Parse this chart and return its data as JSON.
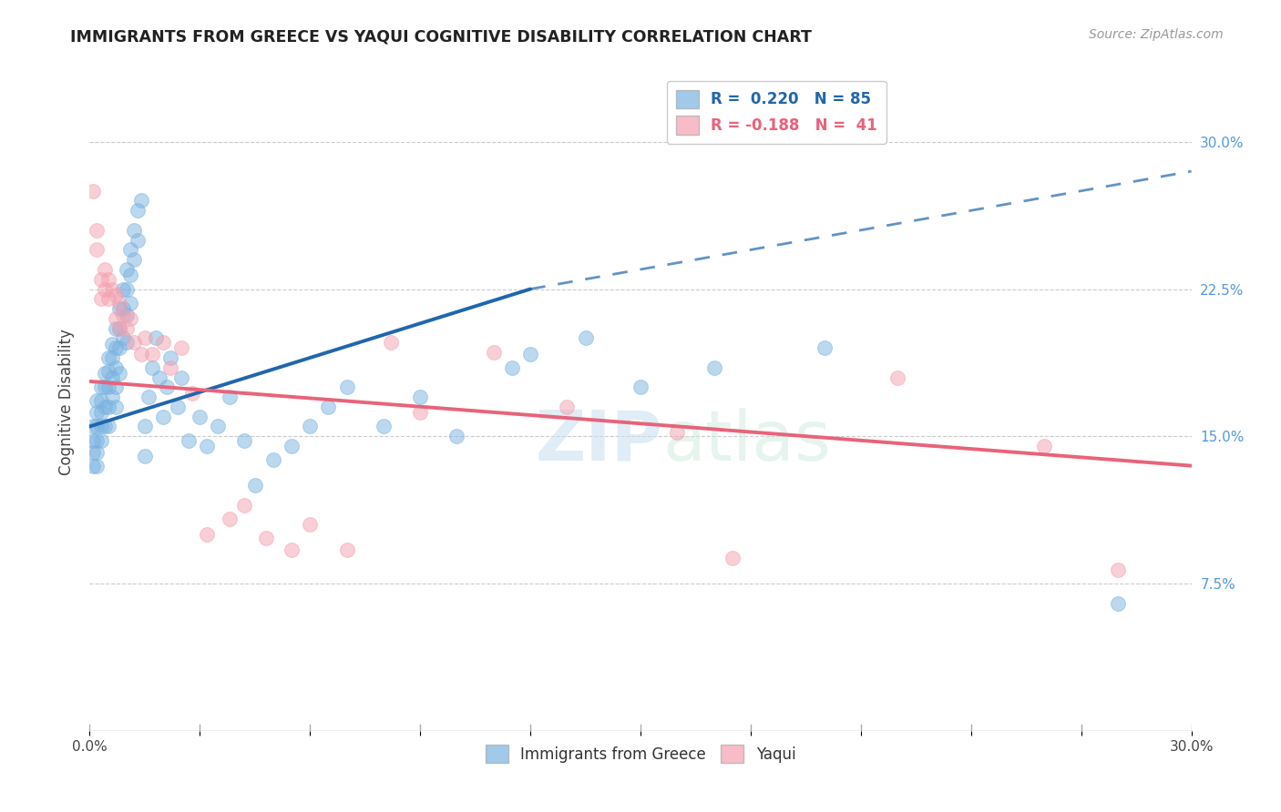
{
  "title": "IMMIGRANTS FROM GREECE VS YAQUI COGNITIVE DISABILITY CORRELATION CHART",
  "source": "Source: ZipAtlas.com",
  "ylabel": "Cognitive Disability",
  "y_tick_labels_right": [
    "30.0%",
    "22.5%",
    "15.0%",
    "7.5%"
  ],
  "y_ticks_right": [
    0.3,
    0.225,
    0.15,
    0.075
  ],
  "xlim": [
    0.0,
    0.3
  ],
  "ylim": [
    0.0,
    0.335
  ],
  "blue_color": "#7ab3e0",
  "pink_color": "#f4a0b0",
  "blue_line_color": "#2166ac",
  "pink_line_color": "#e8637a",
  "watermark_zip": "ZIP",
  "watermark_atlas": "atlas",
  "blue_line_solid_end": 0.12,
  "blue_line_start_y": 0.155,
  "blue_line_end_y": 0.225,
  "blue_line_dash_end_y": 0.285,
  "pink_line_start_y": 0.178,
  "pink_line_end_y": 0.135,
  "blue_scatter_x": [
    0.001,
    0.001,
    0.001,
    0.001,
    0.002,
    0.002,
    0.002,
    0.002,
    0.002,
    0.002,
    0.003,
    0.003,
    0.003,
    0.003,
    0.003,
    0.004,
    0.004,
    0.004,
    0.004,
    0.005,
    0.005,
    0.005,
    0.005,
    0.005,
    0.006,
    0.006,
    0.006,
    0.006,
    0.007,
    0.007,
    0.007,
    0.007,
    0.007,
    0.008,
    0.008,
    0.008,
    0.008,
    0.009,
    0.009,
    0.009,
    0.01,
    0.01,
    0.01,
    0.01,
    0.011,
    0.011,
    0.011,
    0.012,
    0.012,
    0.013,
    0.013,
    0.014,
    0.015,
    0.015,
    0.016,
    0.017,
    0.018,
    0.019,
    0.02,
    0.021,
    0.022,
    0.024,
    0.025,
    0.027,
    0.03,
    0.032,
    0.035,
    0.038,
    0.042,
    0.045,
    0.05,
    0.055,
    0.06,
    0.065,
    0.07,
    0.08,
    0.09,
    0.1,
    0.115,
    0.12,
    0.135,
    0.15,
    0.17,
    0.2,
    0.28
  ],
  "blue_scatter_y": [
    0.155,
    0.148,
    0.142,
    0.135,
    0.168,
    0.162,
    0.155,
    0.148,
    0.142,
    0.135,
    0.175,
    0.168,
    0.162,
    0.155,
    0.148,
    0.182,
    0.175,
    0.165,
    0.155,
    0.19,
    0.183,
    0.175,
    0.165,
    0.155,
    0.197,
    0.19,
    0.18,
    0.17,
    0.205,
    0.195,
    0.185,
    0.175,
    0.165,
    0.215,
    0.205,
    0.195,
    0.182,
    0.225,
    0.215,
    0.2,
    0.235,
    0.225,
    0.212,
    0.198,
    0.245,
    0.232,
    0.218,
    0.255,
    0.24,
    0.265,
    0.25,
    0.27,
    0.155,
    0.14,
    0.17,
    0.185,
    0.2,
    0.18,
    0.16,
    0.175,
    0.19,
    0.165,
    0.18,
    0.148,
    0.16,
    0.145,
    0.155,
    0.17,
    0.148,
    0.125,
    0.138,
    0.145,
    0.155,
    0.165,
    0.175,
    0.155,
    0.17,
    0.15,
    0.185,
    0.192,
    0.2,
    0.175,
    0.185,
    0.195,
    0.065
  ],
  "pink_scatter_x": [
    0.001,
    0.002,
    0.002,
    0.003,
    0.003,
    0.004,
    0.004,
    0.005,
    0.005,
    0.006,
    0.007,
    0.007,
    0.008,
    0.008,
    0.009,
    0.01,
    0.011,
    0.012,
    0.014,
    0.015,
    0.017,
    0.02,
    0.022,
    0.025,
    0.028,
    0.032,
    0.038,
    0.042,
    0.048,
    0.055,
    0.06,
    0.07,
    0.082,
    0.09,
    0.11,
    0.13,
    0.16,
    0.175,
    0.22,
    0.26,
    0.28
  ],
  "pink_scatter_y": [
    0.275,
    0.255,
    0.245,
    0.23,
    0.22,
    0.235,
    0.225,
    0.23,
    0.22,
    0.225,
    0.222,
    0.21,
    0.218,
    0.205,
    0.212,
    0.205,
    0.21,
    0.198,
    0.192,
    0.2,
    0.192,
    0.198,
    0.185,
    0.195,
    0.172,
    0.1,
    0.108,
    0.115,
    0.098,
    0.092,
    0.105,
    0.092,
    0.198,
    0.162,
    0.193,
    0.165,
    0.152,
    0.088,
    0.18,
    0.145,
    0.082
  ]
}
